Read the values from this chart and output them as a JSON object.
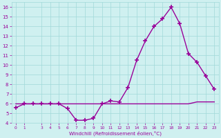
{
  "xlabel": "Windchill (Refroidissement éolien,°C)",
  "x_values": [
    0,
    1,
    2,
    3,
    4,
    5,
    6,
    7,
    8,
    9,
    10,
    11,
    12,
    13,
    14,
    15,
    16,
    17,
    18,
    19,
    20,
    21,
    22,
    23
  ],
  "y_temp": [
    5.6,
    6.0,
    6.0,
    6.0,
    6.0,
    6.0,
    5.5,
    4.3,
    4.3,
    4.5,
    6.0,
    6.3,
    6.2,
    7.7,
    10.5,
    12.5,
    14.0,
    14.8,
    16.0,
    14.3,
    11.2,
    10.3,
    8.9,
    7.5
  ],
  "y_flat": [
    6.0,
    6.0,
    6.0,
    6.0,
    6.0,
    6.0,
    6.0,
    6.0,
    6.0,
    6.0,
    6.0,
    6.0,
    6.0,
    6.0,
    6.0,
    6.0,
    6.0,
    6.0,
    6.0,
    6.0,
    6.0,
    6.2,
    6.2,
    6.2
  ],
  "ylim": [
    4,
    16.5
  ],
  "xlim": [
    -0.5,
    23.5
  ],
  "yticks": [
    4,
    5,
    6,
    7,
    8,
    9,
    10,
    11,
    12,
    13,
    14,
    15,
    16
  ],
  "xticks": [
    0,
    1,
    3,
    4,
    5,
    6,
    7,
    8,
    9,
    10,
    11,
    12,
    13,
    14,
    15,
    16,
    17,
    18,
    19,
    20,
    21,
    22,
    23
  ],
  "line_color": "#990099",
  "bg_color": "#cff0f0",
  "grid_color": "#a0d8d8",
  "font_color": "#990099",
  "marker": "+",
  "linewidth": 1.0,
  "markersize": 5,
  "markeredgewidth": 1.2
}
